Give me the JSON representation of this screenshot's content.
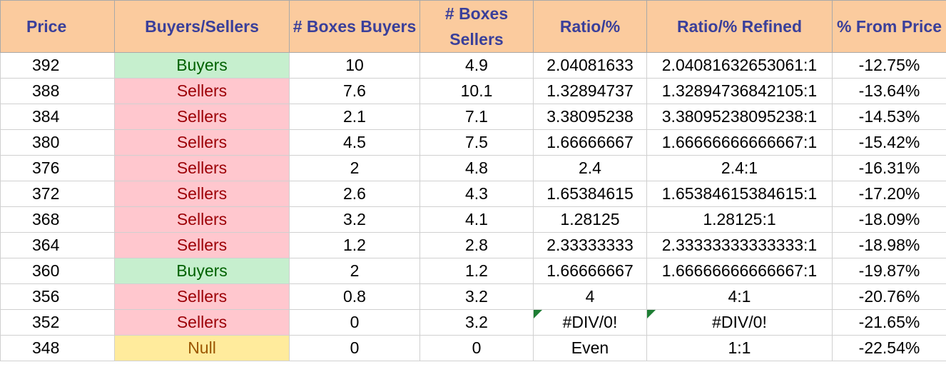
{
  "columns": [
    "Price",
    "Buyers/Sellers",
    "# Boxes Buyers",
    "# Boxes Sellers",
    "Ratio/%",
    "Ratio/% Refined",
    "% From Price"
  ],
  "rows": [
    {
      "price": "392",
      "side": "Buyers",
      "boxes_buyers": "10",
      "boxes_sellers": "4.9",
      "ratio": "2.04081633",
      "ratio_refined": "2.04081632653061:1",
      "from_price": "-12.75%",
      "error": false
    },
    {
      "price": "388",
      "side": "Sellers",
      "boxes_buyers": "7.6",
      "boxes_sellers": "10.1",
      "ratio": "1.32894737",
      "ratio_refined": "1.32894736842105:1",
      "from_price": "-13.64%",
      "error": false
    },
    {
      "price": "384",
      "side": "Sellers",
      "boxes_buyers": "2.1",
      "boxes_sellers": "7.1",
      "ratio": "3.38095238",
      "ratio_refined": "3.38095238095238:1",
      "from_price": "-14.53%",
      "error": false
    },
    {
      "price": "380",
      "side": "Sellers",
      "boxes_buyers": "4.5",
      "boxes_sellers": "7.5",
      "ratio": "1.66666667",
      "ratio_refined": "1.66666666666667:1",
      "from_price": "-15.42%",
      "error": false
    },
    {
      "price": "376",
      "side": "Sellers",
      "boxes_buyers": "2",
      "boxes_sellers": "4.8",
      "ratio": "2.4",
      "ratio_refined": "2.4:1",
      "from_price": "-16.31%",
      "error": false
    },
    {
      "price": "372",
      "side": "Sellers",
      "boxes_buyers": "2.6",
      "boxes_sellers": "4.3",
      "ratio": "1.65384615",
      "ratio_refined": "1.65384615384615:1",
      "from_price": "-17.20%",
      "error": false
    },
    {
      "price": "368",
      "side": "Sellers",
      "boxes_buyers": "3.2",
      "boxes_sellers": "4.1",
      "ratio": "1.28125",
      "ratio_refined": "1.28125:1",
      "from_price": "-18.09%",
      "error": false
    },
    {
      "price": "364",
      "side": "Sellers",
      "boxes_buyers": "1.2",
      "boxes_sellers": "2.8",
      "ratio": "2.33333333",
      "ratio_refined": "2.33333333333333:1",
      "from_price": "-18.98%",
      "error": false
    },
    {
      "price": "360",
      "side": "Buyers",
      "boxes_buyers": "2",
      "boxes_sellers": "1.2",
      "ratio": "1.66666667",
      "ratio_refined": "1.66666666666667:1",
      "from_price": "-19.87%",
      "error": false
    },
    {
      "price": "356",
      "side": "Sellers",
      "boxes_buyers": "0.8",
      "boxes_sellers": "3.2",
      "ratio": "4",
      "ratio_refined": "4:1",
      "from_price": "-20.76%",
      "error": false
    },
    {
      "price": "352",
      "side": "Sellers",
      "boxes_buyers": "0",
      "boxes_sellers": "3.2",
      "ratio": "#DIV/0!",
      "ratio_refined": "#DIV/0!",
      "from_price": "-21.65%",
      "error": true
    },
    {
      "price": "348",
      "side": "Null",
      "boxes_buyers": "0",
      "boxes_sellers": "0",
      "ratio": "Even",
      "ratio_refined": "1:1",
      "from_price": "-22.54%",
      "error": false
    }
  ],
  "colors": {
    "header_bg": "#fbcb9e",
    "header_text": "#3a3f9a",
    "buyers_bg": "#c6efce",
    "buyers_text": "#006100",
    "sellers_bg": "#ffc7ce",
    "sellers_text": "#9c0006",
    "null_bg": "#ffeb9c",
    "null_text": "#9c5700",
    "error_mark": "#1e7e34"
  }
}
